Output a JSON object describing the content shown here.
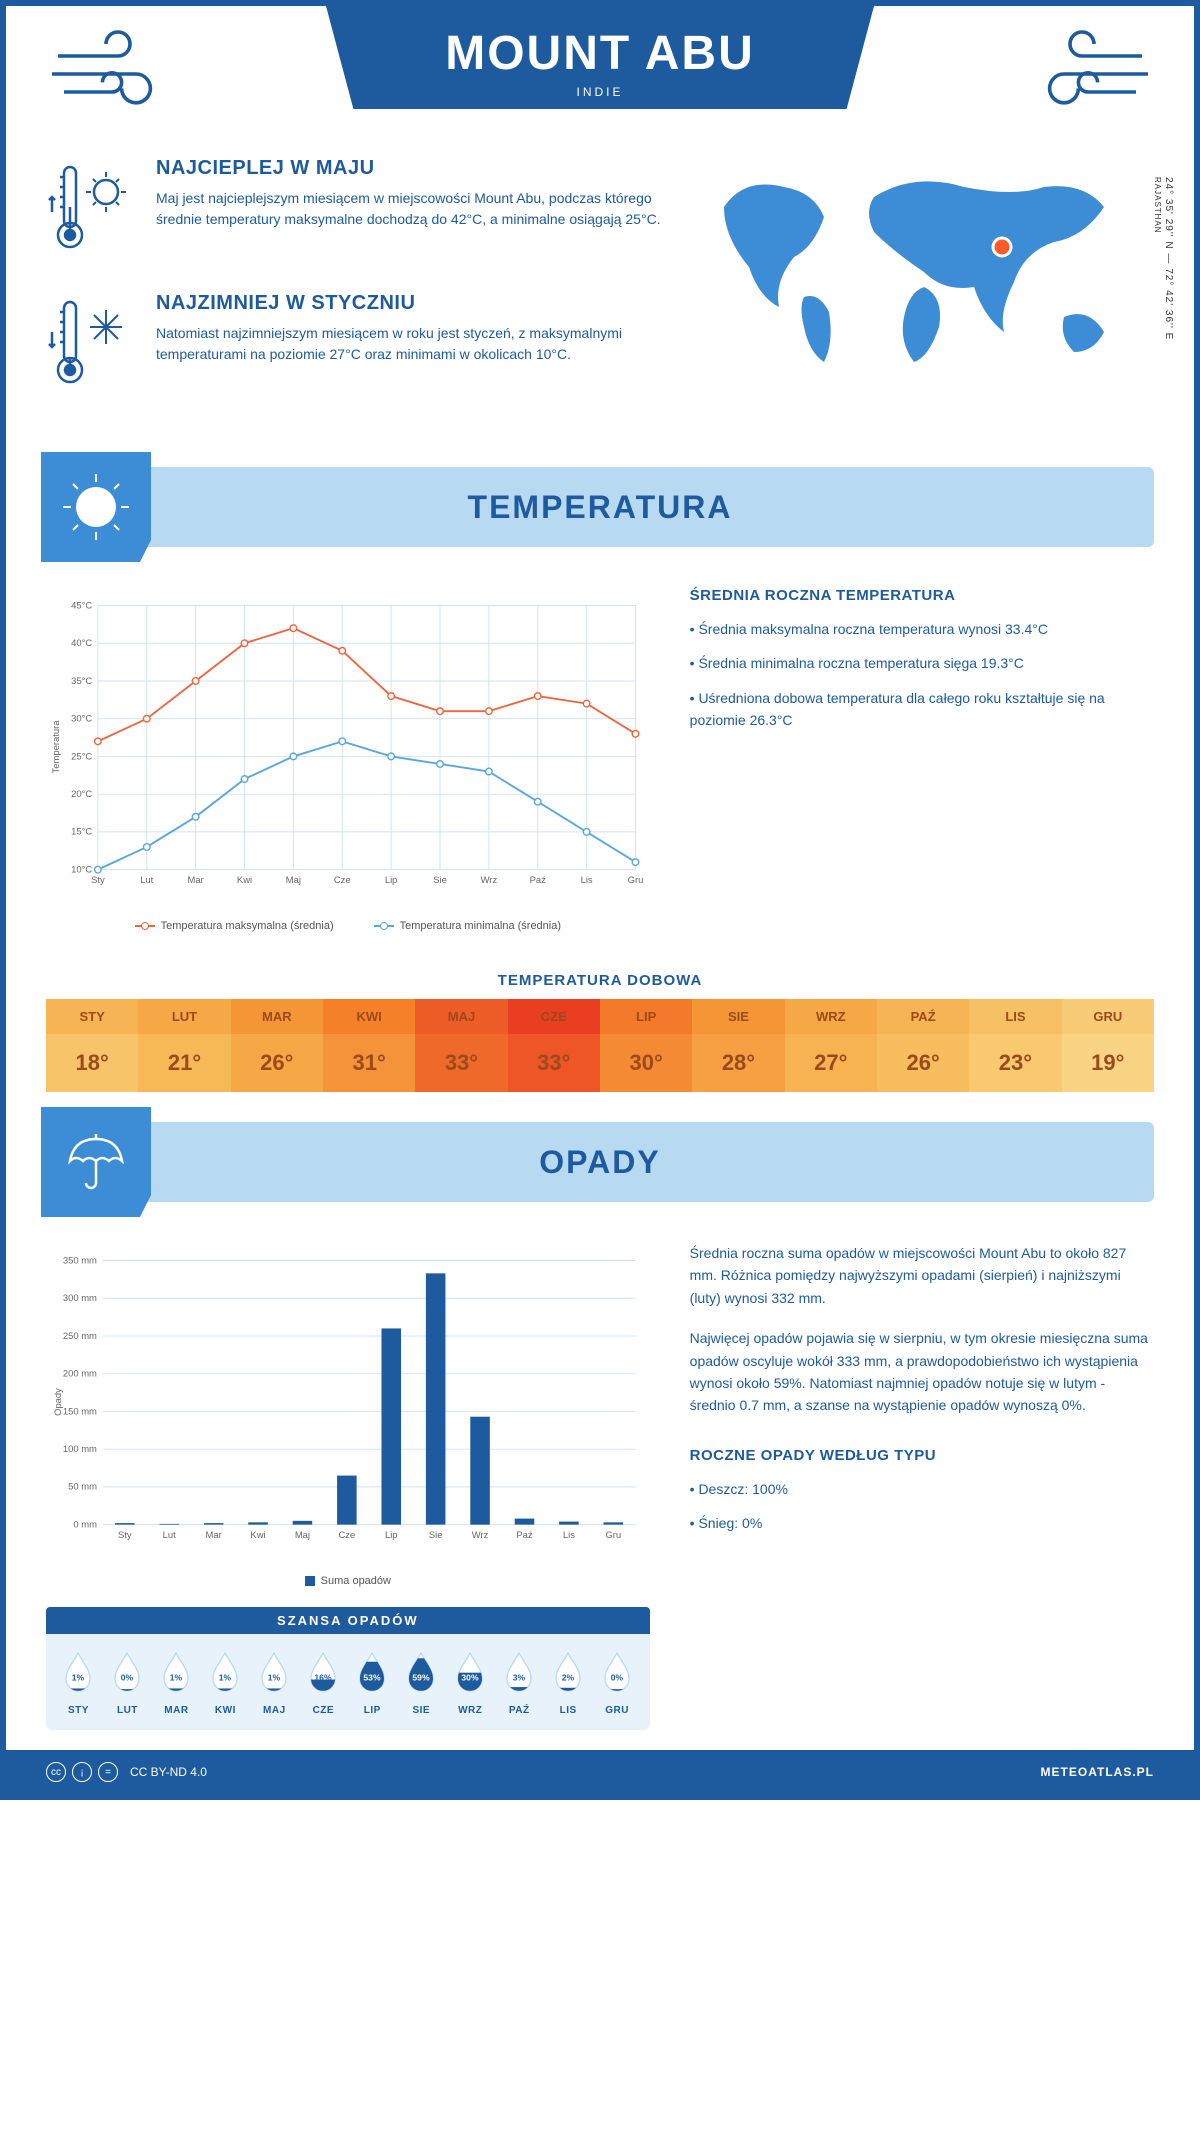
{
  "header": {
    "title": "MOUNT ABU",
    "subtitle": "INDIE",
    "coords": "24° 35' 29'' N — 72° 42' 36'' E",
    "region": "RAJASTHAN"
  },
  "summary": {
    "hot": {
      "title": "NAJCIEPLEJ W MAJU",
      "text": "Maj jest najcieplejszym miesiącem w miejscowości Mount Abu, podczas którego średnie temperatury maksymalne dochodzą do 42°C, a minimalne osiągają 25°C."
    },
    "cold": {
      "title": "NAJZIMNIEJ W STYCZNIU",
      "text": "Natomiast najzimniejszym miesiącem w roku jest styczeń, z maksymalnymi temperaturami na poziomie 27°C oraz minimami w okolicach 10°C."
    }
  },
  "map": {
    "marker_x": 308,
    "marker_y": 90
  },
  "temp_section": {
    "banner": "TEMPERATURA",
    "chart": {
      "type": "line",
      "months": [
        "Sty",
        "Lut",
        "Mar",
        "Kwi",
        "Maj",
        "Cze",
        "Lip",
        "Sie",
        "Wrz",
        "Paź",
        "Lis",
        "Gru"
      ],
      "ylabel": "Temperatura",
      "ylim": [
        10,
        45
      ],
      "ytick_step": 5,
      "ytick_suffix": "°C",
      "grid_color": "#cfe3f5",
      "bg": "#ffffff",
      "series": [
        {
          "name": "Temperatura maksymalna (średnia)",
          "color": "#f0653c",
          "values": [
            27,
            30,
            35,
            40,
            42,
            39,
            33,
            31,
            31,
            33,
            32,
            28
          ]
        },
        {
          "name": "Temperatura minimalna (średnia)",
          "color": "#5aa7e0",
          "values": [
            10,
            13,
            17,
            22,
            25,
            27,
            25,
            24,
            23,
            19,
            15,
            11
          ]
        }
      ]
    },
    "info_title": "ŚREDNIA ROCZNA TEMPERATURA",
    "info_bullets": [
      "Średnia maksymalna roczna temperatura wynosi 33.4°C",
      "Średnia minimalna roczna temperatura sięga 19.3°C",
      "Uśredniona dobowa temperatura dla całego roku kształtuje się na poziomie 26.3°C"
    ],
    "daily_title": "TEMPERATURA DOBOWA",
    "daily": {
      "months": [
        "STY",
        "LUT",
        "MAR",
        "KWI",
        "MAJ",
        "CZE",
        "LIP",
        "SIE",
        "WRZ",
        "PAŹ",
        "LIS",
        "GRU"
      ],
      "values": [
        "18°",
        "21°",
        "26°",
        "31°",
        "33°",
        "33°",
        "30°",
        "28°",
        "27°",
        "26°",
        "23°",
        "19°"
      ],
      "colors_top": [
        "#f6b455",
        "#f6a846",
        "#f59636",
        "#f4812a",
        "#ee5c27",
        "#ea3e23",
        "#f47a2b",
        "#f59636",
        "#f6a846",
        "#f6b455",
        "#f7c064",
        "#f8cb77"
      ],
      "colors_bottom": [
        "#f8c469",
        "#f7b956",
        "#f6a846",
        "#f5933a",
        "#ef6a2a",
        "#ee5527",
        "#f58a34",
        "#f6a043",
        "#f7b251",
        "#f7bd5e",
        "#f8c96f",
        "#f9d484"
      ]
    }
  },
  "rain_section": {
    "banner": "OPADY",
    "chart": {
      "type": "bar",
      "months": [
        "Sty",
        "Lut",
        "Mar",
        "Kwi",
        "Maj",
        "Cze",
        "Lip",
        "Sie",
        "Wrz",
        "Paź",
        "Lis",
        "Gru"
      ],
      "ylabel": "Opady",
      "ylim": [
        0,
        350
      ],
      "ytick_step": 50,
      "ytick_suffix": " mm",
      "grid_color": "#cfe3f5",
      "bar_color": "#1e5a9e",
      "values": [
        2,
        1,
        2,
        3,
        5,
        65,
        260,
        333,
        143,
        8,
        4,
        3
      ],
      "legend": "Suma opadów"
    },
    "info_paras": [
      "Średnia roczna suma opadów w miejscowości Mount Abu to około 827 mm. Różnica pomiędzy najwyższymi opadami (sierpień) i najniższymi (luty) wynosi 332 mm.",
      "Najwięcej opadów pojawia się w sierpniu, w tym okresie miesięczna suma opadów oscyluje wokół 333 mm, a prawdopodobieństwo ich wystąpienia wynosi około 59%. Natomiast najmniej opadów notuje się w lutym - średnio 0.7 mm, a szanse na wystąpienie opadów wynoszą 0%."
    ],
    "chance_title": "SZANSA OPADÓW",
    "chance": {
      "months": [
        "STY",
        "LUT",
        "MAR",
        "KWI",
        "MAJ",
        "CZE",
        "LIP",
        "SIE",
        "WRZ",
        "PAŹ",
        "LIS",
        "GRU"
      ],
      "values": [
        "1%",
        "0%",
        "1%",
        "1%",
        "1%",
        "16%",
        "53%",
        "59%",
        "30%",
        "3%",
        "2%",
        "0%"
      ],
      "fill": [
        2,
        0,
        2,
        2,
        2,
        28,
        80,
        90,
        48,
        6,
        4,
        0
      ]
    },
    "type_title": "ROCZNE OPADY WEDŁUG TYPU",
    "type_bullets": [
      "Deszcz: 100%",
      "Śnieg: 0%"
    ]
  },
  "footer": {
    "license": "CC BY-ND 4.0",
    "brand": "METEOATLAS.PL"
  },
  "colors": {
    "primary": "#1e5a9e",
    "light": "#b8d9f2",
    "mid": "#3c8dd6",
    "pale": "#e8f2fb"
  }
}
